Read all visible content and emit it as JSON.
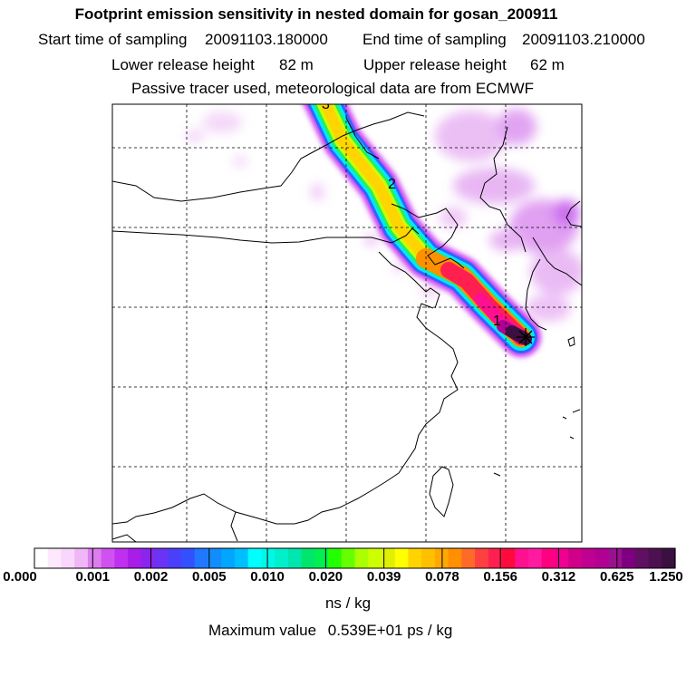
{
  "header": {
    "title": "Footprint emission sensitivity in nested domain for gosan_200911",
    "start_label": "Start time of sampling",
    "start_value": "20091103.180000",
    "end_label": "End time of sampling",
    "end_value": "20091103.210000",
    "lower_label": "Lower release height",
    "lower_value": "82 m",
    "upper_label": "Upper release height",
    "upper_value": "62 m",
    "tracer_note": "Passive tracer used, meteorological data are from ECMWF"
  },
  "map": {
    "plume_markers": [
      "1",
      "2",
      "3"
    ],
    "colors": {
      "plume_core": "#e0004a",
      "plume_outer": "#ffd400",
      "background_tint": "#e6b3f0"
    }
  },
  "colorbar": {
    "ticks": [
      "0.000",
      "0.001",
      "0.002",
      "0.005",
      "0.010",
      "0.020",
      "0.039",
      "0.078",
      "0.156",
      "0.312",
      "0.625",
      "1.250"
    ],
    "colors": [
      "#ffffff",
      "#fde8fd",
      "#f9d6fb",
      "#f0b7f6",
      "#dd7df0",
      "#cf52f0",
      "#c030f0",
      "#a81de8",
      "#8a25ee",
      "#6a33f5",
      "#4a40fa",
      "#3350ff",
      "#1f78ff",
      "#118dff",
      "#00a6ff",
      "#00bfff",
      "#00ffff",
      "#00f8e8",
      "#00f0cc",
      "#00e6b0",
      "#00e66b",
      "#00f050",
      "#22ff00",
      "#66ff00",
      "#aaff00",
      "#ccff00",
      "#e0f000",
      "#ffff00",
      "#ffd400",
      "#ffc000",
      "#ffa800",
      "#ff9000",
      "#ff6a2a",
      "#ff4040",
      "#ff2050",
      "#ff0a3c",
      "#ff1090",
      "#ff1aa0",
      "#ff0080",
      "#f00090",
      "#d0008a",
      "#c00090",
      "#b20095",
      "#9a1090",
      "#7e0080",
      "#601060",
      "#4d1050",
      "#3a1040"
    ],
    "units": "ns / kg"
  },
  "footer": {
    "max_label": "Maximum value",
    "max_value": "0.539E+01 ps / kg"
  }
}
